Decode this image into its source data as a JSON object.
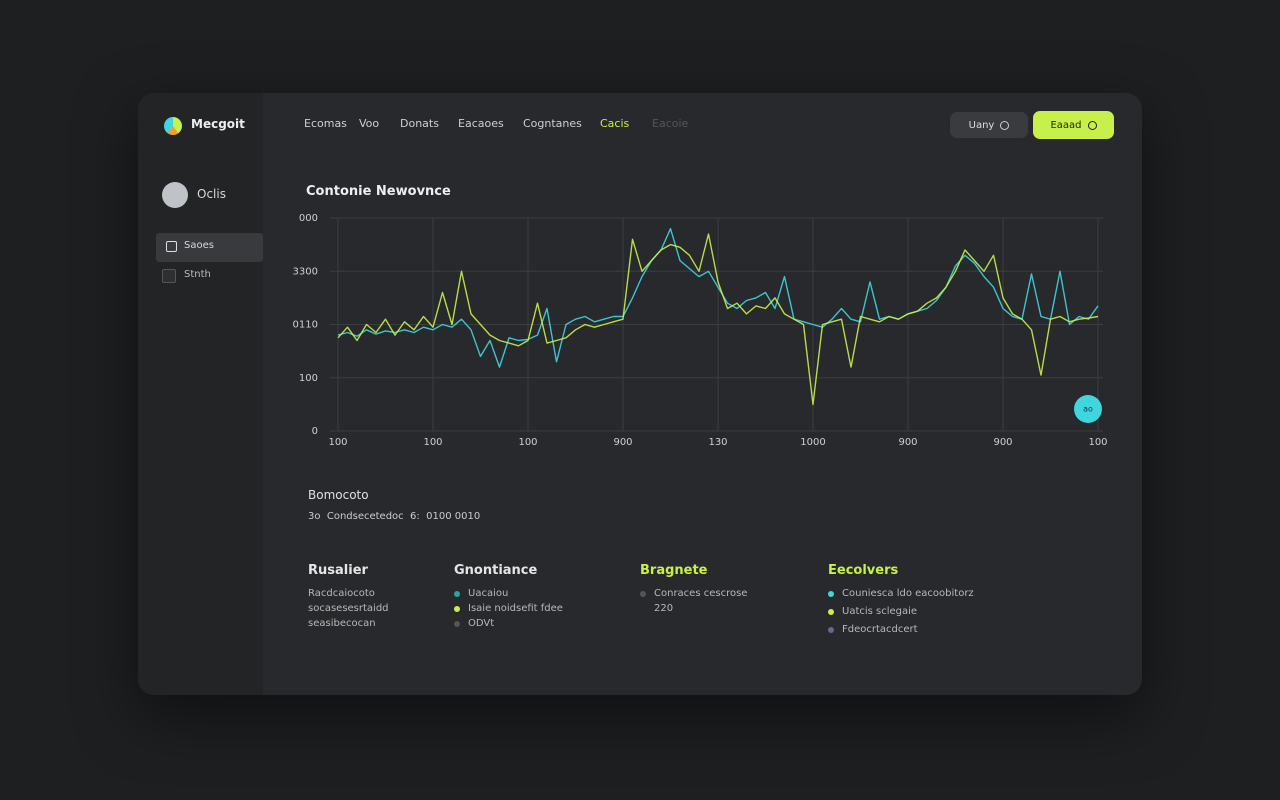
{
  "header": {
    "logo": "Mecgoit",
    "nav": [
      "Ecomas",
      "Voo",
      "Donats",
      "Eacaoes",
      "Cogntanes",
      "Cacis",
      "Eacoie"
    ],
    "search_button": "Uany",
    "primary_button": "Eaaad"
  },
  "sidebar": {
    "user": "Oclis",
    "items": [
      "Saoes",
      "Stnth"
    ]
  },
  "chart_data": {
    "type": "line",
    "title": "Contonie Newovnce",
    "x": [
      0,
      1,
      2,
      3,
      4,
      5,
      6,
      7,
      8,
      9,
      10,
      11,
      12,
      13,
      14,
      15,
      16,
      17,
      18,
      19,
      20,
      21,
      22,
      23,
      24,
      25,
      26,
      27,
      28,
      29,
      30,
      31,
      32,
      33,
      34,
      35,
      36,
      37,
      38,
      39,
      40,
      41,
      42,
      43,
      44,
      45,
      46,
      47,
      48,
      49,
      50,
      51,
      52,
      53,
      54,
      55,
      56,
      57,
      58,
      59,
      60,
      61,
      62,
      63,
      64,
      65,
      66,
      67,
      68,
      69,
      70,
      71,
      72,
      73,
      74,
      75,
      76,
      77,
      78,
      79,
      80
    ],
    "series": [
      {
        "name": "Cyan",
        "color": "#3fd6e0",
        "values": [
          180,
          185,
          178,
          190,
          182,
          188,
          185,
          190,
          185,
          195,
          190,
          200,
          195,
          210,
          190,
          140,
          170,
          120,
          175,
          170,
          172,
          180,
          230,
          130,
          200,
          210,
          215,
          205,
          210,
          215,
          215,
          250,
          290,
          320,
          340,
          380,
          320,
          305,
          290,
          300,
          270,
          240,
          230,
          245,
          250,
          260,
          230,
          290,
          210,
          205,
          200,
          195,
          210,
          230,
          210,
          205,
          280,
          210,
          215,
          210,
          220,
          225,
          230,
          245,
          270,
          310,
          330,
          315,
          290,
          270,
          230,
          215,
          210,
          295,
          215,
          210,
          300,
          200,
          215,
          210,
          235
        ]
      },
      {
        "name": "Lime",
        "color": "#c8f04a",
        "values": [
          175,
          195,
          170,
          200,
          185,
          210,
          180,
          205,
          190,
          215,
          195,
          260,
          200,
          300,
          220,
          200,
          180,
          170,
          165,
          160,
          170,
          240,
          165,
          170,
          175,
          190,
          200,
          195,
          200,
          205,
          210,
          360,
          300,
          320,
          340,
          350,
          345,
          330,
          300,
          370,
          280,
          230,
          240,
          220,
          235,
          230,
          250,
          220,
          210,
          200,
          50,
          200,
          205,
          210,
          120,
          215,
          210,
          205,
          215,
          210,
          220,
          225,
          240,
          250,
          270,
          300,
          340,
          320,
          300,
          330,
          250,
          220,
          210,
          190,
          105,
          210,
          215,
          205,
          210,
          212,
          215
        ]
      }
    ],
    "xlim": [
      -1,
      80
    ],
    "xticks": [
      {
        "value": 0,
        "label": "100"
      },
      {
        "value": 10,
        "label": "100"
      },
      {
        "value": 20,
        "label": "100"
      },
      {
        "value": 30,
        "label": "900"
      },
      {
        "value": 40,
        "label": "130"
      },
      {
        "value": 50,
        "label": "1000"
      },
      {
        "value": 60,
        "label": "900"
      },
      {
        "value": 70,
        "label": "900"
      },
      {
        "value": 80,
        "label": "100"
      }
    ],
    "ylim": [
      0,
      400
    ],
    "yticks": [
      0,
      100,
      {
        "value": 200,
        "label": "0110"
      },
      {
        "value": 300,
        "label": "3300"
      },
      {
        "value": 400,
        "label": "000"
      }
    ],
    "grid": true,
    "badge": "ao"
  },
  "summary": {
    "title": "Bomocoto",
    "text": "3o  Condsecetedoc  6:  0100 0010"
  },
  "columns": [
    {
      "title": "Rusalier",
      "items": [
        "Racdcaiocoto",
        "socasesesrtaidd",
        "seasibecocan"
      ]
    },
    {
      "title": "Gnontiance",
      "items": [
        "Uacaiou",
        "Isaie noidsefit fdee",
        "ODVt"
      ]
    },
    {
      "title": "Bragnete",
      "items": [
        "Conraces cescrose",
        "220"
      ]
    },
    {
      "title": "Eecolvers",
      "items": [
        "Couniesca ldo eacoobitorz",
        "Uatcis sclegaie",
        "Fdeocrtacdcert"
      ]
    }
  ]
}
